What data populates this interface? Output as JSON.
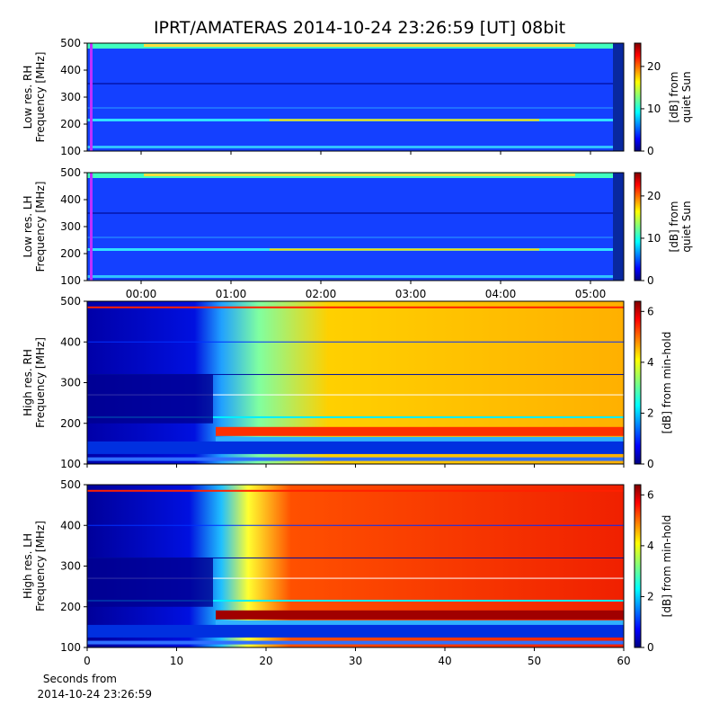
{
  "chart_data": [
    {
      "type": "heatmap",
      "title": "IPRT/AMATERAS 2014-10-24 23:26:59 [UT]   08bit",
      "ylabel": [
        "Low res. RH",
        "Frequency [MHz]"
      ],
      "ylim": [
        100,
        500
      ],
      "yticks": [
        100,
        200,
        300,
        400,
        500
      ],
      "xlim": [
        -0.6,
        5.37
      ],
      "xticks": [
        {
          "value": 0,
          "label": "00:00"
        },
        {
          "value": 1,
          "label": "01:00"
        },
        {
          "value": 2,
          "label": "02:00"
        },
        {
          "value": 3,
          "label": "03:00"
        },
        {
          "value": 4,
          "label": "04:00"
        },
        {
          "value": 5,
          "label": "05:00"
        }
      ],
      "show_xticklabels": false,
      "style": "low",
      "colorbar": {
        "label": [
          "[dB] from",
          "quiet Sun"
        ],
        "lim": [
          0,
          25.5
        ],
        "ticks": [
          0,
          10,
          20
        ]
      }
    },
    {
      "type": "heatmap",
      "ylabel": [
        "Low res. LH",
        "Frequency [MHz]"
      ],
      "ylim": [
        100,
        500
      ],
      "yticks": [
        100,
        200,
        300,
        400,
        500
      ],
      "xlim": [
        -0.6,
        5.37
      ],
      "xticks": [
        {
          "value": 0,
          "label": "00:00"
        },
        {
          "value": 1,
          "label": "01:00"
        },
        {
          "value": 2,
          "label": "02:00"
        },
        {
          "value": 3,
          "label": "03:00"
        },
        {
          "value": 4,
          "label": "04:00"
        },
        {
          "value": 5,
          "label": "05:00"
        }
      ],
      "show_xticklabels": true,
      "style": "low",
      "colorbar": {
        "label": [
          "[dB] from",
          "quiet Sun"
        ],
        "lim": [
          0,
          25.5
        ],
        "ticks": [
          0,
          10,
          20
        ]
      }
    },
    {
      "type": "heatmap",
      "ylabel": [
        "High res. RH",
        "Frequency [MHz]"
      ],
      "ylim": [
        100,
        500
      ],
      "yticks": [
        100,
        200,
        300,
        400,
        500
      ],
      "xlim": [
        0,
        60
      ],
      "xticks": [
        0,
        10,
        20,
        30,
        40,
        50,
        60
      ],
      "show_xticklabels": false,
      "style": "high",
      "colorbar": {
        "label": [
          "[dB] from min-hold"
        ],
        "lim": [
          0,
          6.4
        ],
        "ticks": [
          0,
          2,
          4,
          6
        ]
      }
    },
    {
      "type": "heatmap",
      "ylabel": [
        "High res. LH",
        "Frequency [MHz]"
      ],
      "ylim": [
        100,
        500
      ],
      "yticks": [
        100,
        200,
        300,
        400,
        500
      ],
      "xlim": [
        0,
        60
      ],
      "xticks": [
        0,
        10,
        20,
        30,
        40,
        50,
        60
      ],
      "show_xticklabels": true,
      "style": "high",
      "xlabel": [
        "Seconds from",
        "2014-10-24 23:26:59"
      ],
      "colorbar": {
        "label": [
          "[dB] from min-hold"
        ],
        "lim": [
          0,
          6.4
        ],
        "ticks": [
          0,
          2,
          4,
          6
        ]
      }
    }
  ]
}
